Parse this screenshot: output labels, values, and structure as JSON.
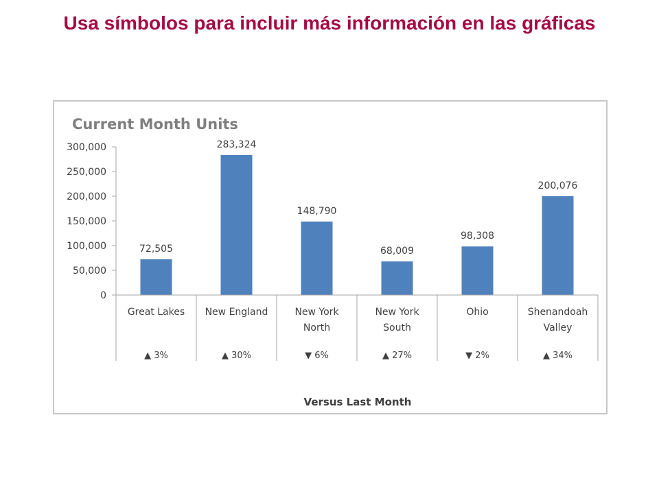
{
  "slide": {
    "title": "Usa símbolos para incluir más información en las gráficas",
    "title_color": "#a50a45"
  },
  "chart_data": {
    "type": "bar",
    "title": "Current Month Units",
    "xlabel": "Versus Last Month",
    "ylabel": "",
    "ylim": [
      0,
      300000
    ],
    "yticks": [
      "300,000",
      "250,000",
      "200,000",
      "150,000",
      "100,000",
      "50,000",
      "0"
    ],
    "categories": [
      [
        "Great Lakes"
      ],
      [
        "New England"
      ],
      [
        "New York",
        "North"
      ],
      [
        "New York",
        "South"
      ],
      [
        "Ohio"
      ],
      [
        "Shenandoah",
        "Valley"
      ]
    ],
    "values": [
      72505,
      283324,
      148790,
      68009,
      98308,
      200076
    ],
    "value_labels": [
      "72,505",
      "283,324",
      "148,790",
      "68,009",
      "98,308",
      "200,076"
    ],
    "change_vs_last_month": [
      "▲ 3%",
      "▲ 30%",
      "▼ 6%",
      "▲ 27%",
      "▼ 2%",
      "▲ 34%"
    ],
    "change_direction": [
      "up",
      "up",
      "down",
      "up",
      "down",
      "up"
    ],
    "grid": false,
    "legend": "none",
    "bar_color": "#4f81bd"
  }
}
